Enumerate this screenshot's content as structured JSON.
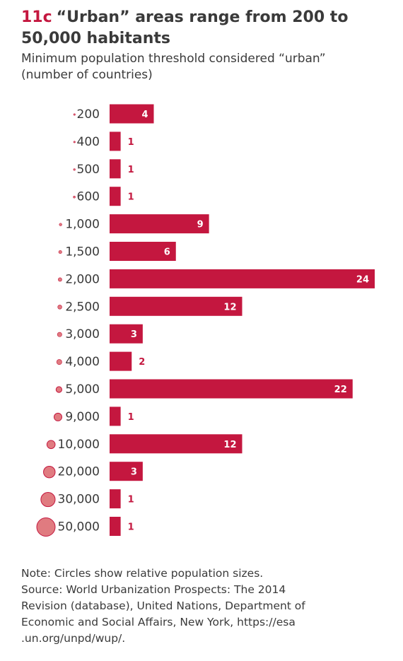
{
  "header": {
    "figure_number": "11c",
    "title": "“Urban” areas range from 200 to 50,000 habitants",
    "subtitle_line1": "Minimum population threshold considered “urban”",
    "subtitle_line2": "(number of countries)"
  },
  "colors": {
    "bar": "#c4173f",
    "circle_fill": "#e07b80",
    "circle_stroke": "#c4173f",
    "text": "#3a3a3a"
  },
  "chart_data": {
    "type": "bar",
    "orientation": "horizontal",
    "categories": [
      "200",
      "400",
      "500",
      "600",
      "1,000",
      "1,500",
      "2,000",
      "2,500",
      "3,000",
      "4,000",
      "5,000",
      "9,000",
      "10,000",
      "20,000",
      "30,000",
      "50,000"
    ],
    "population_thresholds": [
      200,
      400,
      500,
      600,
      1000,
      1500,
      2000,
      2500,
      3000,
      4000,
      5000,
      9000,
      10000,
      20000,
      30000,
      50000
    ],
    "values": [
      4,
      1,
      1,
      1,
      9,
      6,
      24,
      12,
      3,
      2,
      22,
      1,
      12,
      3,
      1,
      1
    ],
    "xlim": [
      0,
      24
    ],
    "grid": false,
    "legend": "none"
  },
  "footer": {
    "note": "Note: Circles show relative population sizes.",
    "source_line1": "Source: World Urbanization Prospects: The 2014",
    "source_line2": "Revision (database), United Nations, Department of",
    "source_line3": "Economic and Social Affairs, New York, https://esa",
    "source_line4": ".un.org/unpd/wup/."
  }
}
